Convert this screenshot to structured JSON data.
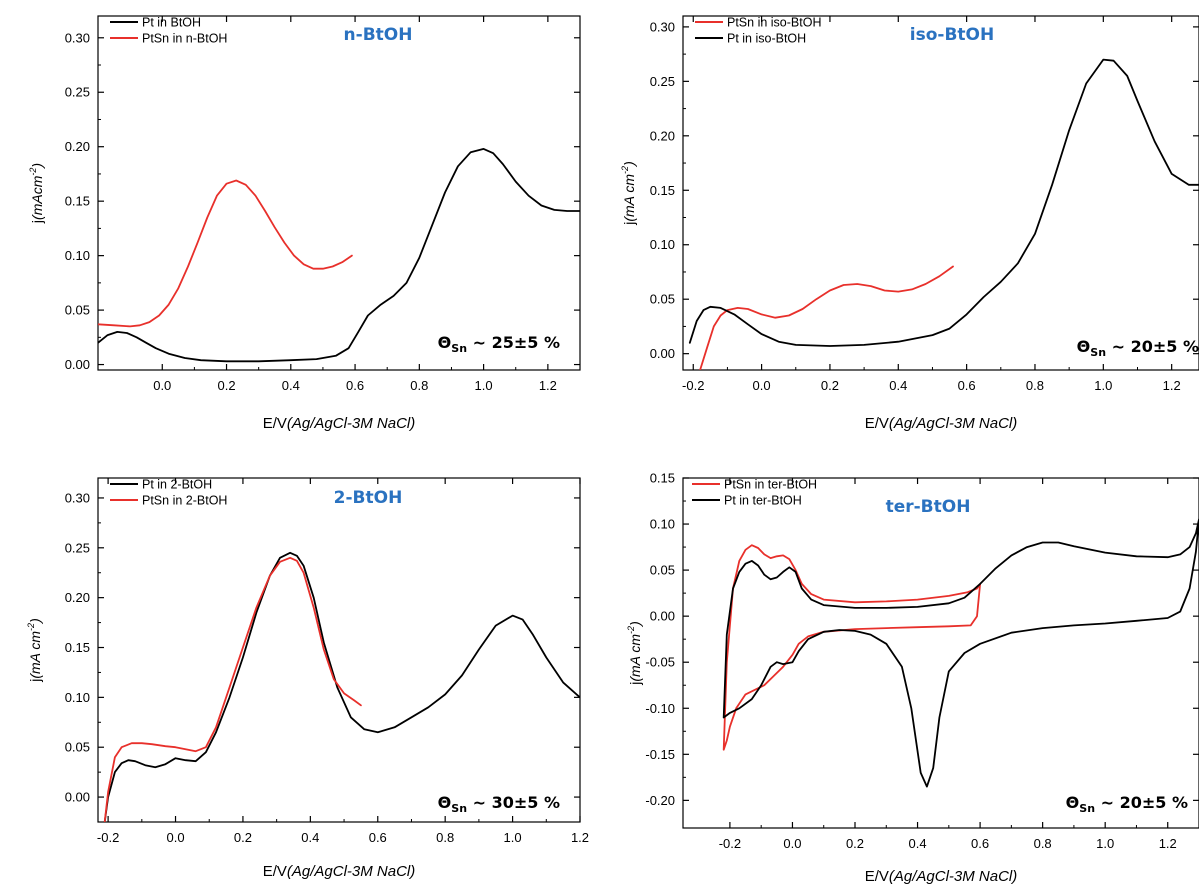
{
  "colors": {
    "pt": "#000000",
    "ptsn": "#e8302b",
    "title": "#2a72c0"
  },
  "chart_data": [
    {
      "type": "line",
      "title": "n-BtOH",
      "xlabel_plain": "E/V",
      "xlabel_italic": "(Ag/AgCl-3M NaCl)",
      "ylabel_prefix": "j",
      "ylabel_italic": "(mAcm",
      "ylabel_sup": "-2",
      "ylabel_close": ")",
      "xlim": [
        -0.2,
        1.3
      ],
      "ylim": [
        -0.005,
        0.32
      ],
      "xticks": [
        0.0,
        0.2,
        0.4,
        0.6,
        0.8,
        1.0,
        1.2
      ],
      "xtick_labels": [
        "0.0",
        "0.2",
        "0.4",
        "0.6",
        "0.8",
        "1.0",
        "1.2"
      ],
      "yticks": [
        0.0,
        0.05,
        0.1,
        0.15,
        0.2,
        0.25,
        0.3
      ],
      "ytick_labels": [
        "0.00",
        "0.05",
        "0.10",
        "0.15",
        "0.20",
        "0.25",
        "0.30"
      ],
      "legend_position": "top-left",
      "annotation_symbol": "Θ",
      "annotation_sub": "Sn",
      "annotation_text": " ~ 25±5 %",
      "series": [
        {
          "name": "Pt in BtOH",
          "color_key": "pt",
          "x": [
            -0.2,
            -0.17,
            -0.14,
            -0.11,
            -0.08,
            -0.05,
            -0.02,
            0.02,
            0.07,
            0.12,
            0.2,
            0.3,
            0.4,
            0.48,
            0.54,
            0.58,
            0.61,
            0.64,
            0.68,
            0.72,
            0.76,
            0.8,
            0.84,
            0.88,
            0.92,
            0.96,
            1.0,
            1.03,
            1.06,
            1.1,
            1.14,
            1.18,
            1.22,
            1.26,
            1.3
          ],
          "y": [
            0.02,
            0.027,
            0.03,
            0.029,
            0.025,
            0.02,
            0.015,
            0.01,
            0.006,
            0.004,
            0.003,
            0.003,
            0.004,
            0.005,
            0.008,
            0.015,
            0.03,
            0.045,
            0.055,
            0.063,
            0.075,
            0.098,
            0.128,
            0.158,
            0.182,
            0.195,
            0.198,
            0.194,
            0.184,
            0.168,
            0.155,
            0.146,
            0.142,
            0.141,
            0.141
          ]
        },
        {
          "name": "PtSn in n-BtOH",
          "color_key": "ptsn",
          "x": [
            -0.2,
            -0.15,
            -0.1,
            -0.07,
            -0.04,
            -0.01,
            0.02,
            0.05,
            0.08,
            0.11,
            0.14,
            0.17,
            0.2,
            0.23,
            0.26,
            0.29,
            0.32,
            0.35,
            0.38,
            0.41,
            0.44,
            0.47,
            0.5,
            0.53,
            0.56,
            0.59
          ],
          "y": [
            0.037,
            0.036,
            0.035,
            0.036,
            0.039,
            0.045,
            0.055,
            0.07,
            0.09,
            0.112,
            0.135,
            0.155,
            0.166,
            0.169,
            0.165,
            0.155,
            0.141,
            0.126,
            0.112,
            0.1,
            0.092,
            0.088,
            0.088,
            0.09,
            0.094,
            0.1
          ]
        }
      ]
    },
    {
      "type": "line",
      "title": "iso-BtOH",
      "xlabel_plain": "E/V",
      "xlabel_italic": "(Ag/AgCl-3M NaCl)",
      "ylabel_prefix": "j",
      "ylabel_italic": "(mA cm",
      "ylabel_sup": "-2",
      "ylabel_close": ")",
      "xlim": [
        -0.23,
        1.28
      ],
      "ylim": [
        -0.015,
        0.31
      ],
      "xticks": [
        -0.2,
        0.0,
        0.2,
        0.4,
        0.6,
        0.8,
        1.0,
        1.2
      ],
      "xtick_labels": [
        "-0.2",
        "0.0",
        "0.2",
        "0.4",
        "0.6",
        "0.8",
        "1.0",
        "1.2"
      ],
      "yticks": [
        0.0,
        0.05,
        0.1,
        0.15,
        0.2,
        0.25,
        0.3
      ],
      "ytick_labels": [
        "0.00",
        "0.05",
        "0.10",
        "0.15",
        "0.20",
        "0.25",
        "0.30"
      ],
      "legend_position": "top-left",
      "annotation_symbol": "Θ",
      "annotation_sub": "Sn",
      "annotation_text": " ~ 20±5 %",
      "series": [
        {
          "name": "PtSn in iso-BtOH",
          "color_key": "ptsn",
          "x": [
            -0.18,
            -0.16,
            -0.14,
            -0.12,
            -0.1,
            -0.07,
            -0.04,
            0.0,
            0.04,
            0.08,
            0.12,
            0.16,
            0.2,
            0.24,
            0.28,
            0.32,
            0.36,
            0.4,
            0.44,
            0.48,
            0.52,
            0.56
          ],
          "y": [
            -0.015,
            0.005,
            0.025,
            0.035,
            0.04,
            0.042,
            0.041,
            0.036,
            0.033,
            0.035,
            0.041,
            0.05,
            0.058,
            0.063,
            0.064,
            0.062,
            0.058,
            0.057,
            0.059,
            0.064,
            0.071,
            0.08
          ]
        },
        {
          "name": "Pt in iso-BtOH",
          "color_key": "pt",
          "x": [
            -0.21,
            -0.19,
            -0.17,
            -0.15,
            -0.12,
            -0.08,
            -0.04,
            0.0,
            0.05,
            0.1,
            0.2,
            0.3,
            0.4,
            0.5,
            0.55,
            0.6,
            0.65,
            0.7,
            0.75,
            0.8,
            0.85,
            0.9,
            0.95,
            1.0,
            1.03,
            1.07,
            1.1,
            1.15,
            1.2,
            1.25,
            1.28
          ],
          "y": [
            0.01,
            0.03,
            0.04,
            0.043,
            0.042,
            0.036,
            0.027,
            0.018,
            0.011,
            0.008,
            0.007,
            0.008,
            0.011,
            0.017,
            0.023,
            0.036,
            0.052,
            0.066,
            0.083,
            0.11,
            0.155,
            0.205,
            0.248,
            0.27,
            0.269,
            0.255,
            0.232,
            0.195,
            0.165,
            0.155,
            0.155
          ]
        }
      ]
    },
    {
      "type": "line",
      "title": "2-BtOH",
      "xlabel_plain": "E/V",
      "xlabel_italic": "(Ag/AgCl-3M NaCl)",
      "ylabel_prefix": "j",
      "ylabel_italic": "(mA cm",
      "ylabel_sup": "-2",
      "ylabel_close": ")",
      "xlim": [
        -0.23,
        1.2
      ],
      "ylim": [
        -0.025,
        0.32
      ],
      "xticks": [
        -0.2,
        0.0,
        0.2,
        0.4,
        0.6,
        0.8,
        1.0,
        1.2
      ],
      "xtick_labels": [
        "-0.2",
        "0.0",
        "0.2",
        "0.4",
        "0.6",
        "0.8",
        "1.0",
        "1.2"
      ],
      "yticks": [
        0.0,
        0.05,
        0.1,
        0.15,
        0.2,
        0.25,
        0.3
      ],
      "ytick_labels": [
        "0.00",
        "0.05",
        "0.10",
        "0.15",
        "0.20",
        "0.25",
        "0.30"
      ],
      "legend_position": "top-left",
      "annotation_symbol": "Θ",
      "annotation_sub": "Sn",
      "annotation_text": " ~ 30±5 %",
      "series": [
        {
          "name": "Pt in 2-BtOH",
          "color_key": "pt",
          "x": [
            -0.21,
            -0.2,
            -0.18,
            -0.16,
            -0.14,
            -0.12,
            -0.09,
            -0.06,
            -0.03,
            0.0,
            0.03,
            0.06,
            0.09,
            0.12,
            0.16,
            0.2,
            0.24,
            0.28,
            0.31,
            0.34,
            0.36,
            0.38,
            0.41,
            0.44,
            0.48,
            0.52,
            0.56,
            0.6,
            0.65,
            0.7,
            0.75,
            0.8,
            0.85,
            0.9,
            0.95,
            1.0,
            1.03,
            1.06,
            1.1,
            1.15,
            1.2
          ],
          "y": [
            -0.025,
            0.0,
            0.025,
            0.034,
            0.037,
            0.036,
            0.032,
            0.03,
            0.033,
            0.039,
            0.037,
            0.036,
            0.045,
            0.065,
            0.1,
            0.14,
            0.185,
            0.222,
            0.24,
            0.245,
            0.242,
            0.232,
            0.2,
            0.155,
            0.11,
            0.08,
            0.068,
            0.065,
            0.07,
            0.08,
            0.09,
            0.103,
            0.122,
            0.148,
            0.172,
            0.182,
            0.178,
            0.163,
            0.14,
            0.115,
            0.1
          ]
        },
        {
          "name": "PtSn in 2-BtOH",
          "color_key": "ptsn",
          "x": [
            -0.21,
            -0.2,
            -0.18,
            -0.16,
            -0.13,
            -0.1,
            -0.07,
            -0.03,
            0.0,
            0.03,
            0.06,
            0.09,
            0.12,
            0.16,
            0.2,
            0.24,
            0.28,
            0.31,
            0.34,
            0.36,
            0.38,
            0.41,
            0.44,
            0.47,
            0.5,
            0.53,
            0.55
          ],
          "y": [
            -0.025,
            0.005,
            0.04,
            0.05,
            0.054,
            0.054,
            0.053,
            0.051,
            0.05,
            0.048,
            0.046,
            0.05,
            0.07,
            0.11,
            0.15,
            0.19,
            0.222,
            0.236,
            0.24,
            0.237,
            0.225,
            0.19,
            0.148,
            0.118,
            0.104,
            0.097,
            0.092
          ]
        }
      ]
    },
    {
      "type": "line",
      "title": "ter-BtOH",
      "xlabel_plain": "E/V",
      "xlabel_italic": "(Ag/AgCl-3M NaCl)",
      "ylabel_prefix": "j",
      "ylabel_italic": "(mA cm",
      "ylabel_sup": "-2",
      "ylabel_close": ")",
      "xlim": [
        -0.35,
        1.3
      ],
      "ylim": [
        -0.23,
        0.15
      ],
      "xticks": [
        -0.2,
        0.0,
        0.2,
        0.4,
        0.6,
        0.8,
        1.0,
        1.2
      ],
      "xtick_labels": [
        "-0.2",
        "0.0",
        "0.2",
        "0.4",
        "0.6",
        "0.8",
        "1.0",
        "1.2"
      ],
      "yticks": [
        -0.2,
        -0.15,
        -0.1,
        -0.05,
        0.0,
        0.05,
        0.1,
        0.15
      ],
      "ytick_labels": [
        "-0.20",
        "-0.15",
        "-0.10",
        "-0.05",
        "0.00",
        "0.05",
        "0.10",
        "0.15"
      ],
      "legend_position": "top-left",
      "annotation_symbol": "Θ",
      "annotation_sub": "Sn",
      "annotation_text": " ~ 20±5 %",
      "series": [
        {
          "name": "PtSn in ter-BtOH",
          "color_key": "ptsn",
          "x": [
            -0.22,
            -0.21,
            -0.19,
            -0.17,
            -0.15,
            -0.13,
            -0.11,
            -0.09,
            -0.07,
            -0.05,
            -0.03,
            -0.01,
            0.01,
            0.03,
            0.06,
            0.1,
            0.2,
            0.3,
            0.4,
            0.5,
            0.56,
            0.59,
            0.6,
            0.59,
            0.57,
            0.5,
            0.4,
            0.3,
            0.2,
            0.1,
            0.05,
            0.02,
            0.0,
            -0.03,
            -0.06,
            -0.09,
            -0.12,
            -0.15,
            -0.18,
            -0.2,
            -0.21,
            -0.22
          ],
          "y": [
            -0.145,
            -0.05,
            0.03,
            0.06,
            0.072,
            0.077,
            0.074,
            0.067,
            0.063,
            0.065,
            0.066,
            0.062,
            0.05,
            0.035,
            0.024,
            0.018,
            0.015,
            0.016,
            0.018,
            0.022,
            0.026,
            0.03,
            0.035,
            0.0,
            -0.01,
            -0.011,
            -0.012,
            -0.013,
            -0.014,
            -0.017,
            -0.022,
            -0.03,
            -0.042,
            -0.055,
            -0.065,
            -0.075,
            -0.08,
            -0.085,
            -0.1,
            -0.12,
            -0.135,
            -0.145
          ]
        },
        {
          "name": "Pt in ter-BtOH",
          "color_key": "pt",
          "x": [
            -0.22,
            -0.21,
            -0.19,
            -0.17,
            -0.15,
            -0.13,
            -0.11,
            -0.09,
            -0.07,
            -0.05,
            -0.03,
            -0.01,
            0.01,
            0.03,
            0.06,
            0.1,
            0.2,
            0.3,
            0.4,
            0.5,
            0.55,
            0.6,
            0.65,
            0.7,
            0.75,
            0.8,
            0.85,
            0.9,
            1.0,
            1.1,
            1.2,
            1.24,
            1.27,
            1.29,
            1.3,
            1.29,
            1.27,
            1.24,
            1.2,
            1.1,
            1.0,
            0.9,
            0.8,
            0.7,
            0.6,
            0.55,
            0.5,
            0.47,
            0.45,
            0.43,
            0.41,
            0.38,
            0.35,
            0.3,
            0.25,
            0.2,
            0.15,
            0.1,
            0.05,
            0.02,
            0.0,
            -0.03,
            -0.05,
            -0.07,
            -0.1,
            -0.13,
            -0.17,
            -0.2,
            -0.22
          ],
          "y": [
            -0.11,
            -0.02,
            0.03,
            0.048,
            0.057,
            0.06,
            0.055,
            0.045,
            0.04,
            0.042,
            0.048,
            0.053,
            0.048,
            0.03,
            0.018,
            0.012,
            0.009,
            0.009,
            0.01,
            0.014,
            0.02,
            0.035,
            0.052,
            0.066,
            0.075,
            0.08,
            0.08,
            0.076,
            0.069,
            0.065,
            0.064,
            0.067,
            0.075,
            0.09,
            0.105,
            0.07,
            0.03,
            0.005,
            -0.002,
            -0.005,
            -0.008,
            -0.01,
            -0.013,
            -0.018,
            -0.03,
            -0.04,
            -0.06,
            -0.11,
            -0.165,
            -0.185,
            -0.17,
            -0.1,
            -0.055,
            -0.03,
            -0.02,
            -0.016,
            -0.015,
            -0.017,
            -0.025,
            -0.038,
            -0.05,
            -0.052,
            -0.05,
            -0.055,
            -0.075,
            -0.09,
            -0.1,
            -0.105,
            -0.11
          ]
        }
      ]
    }
  ]
}
